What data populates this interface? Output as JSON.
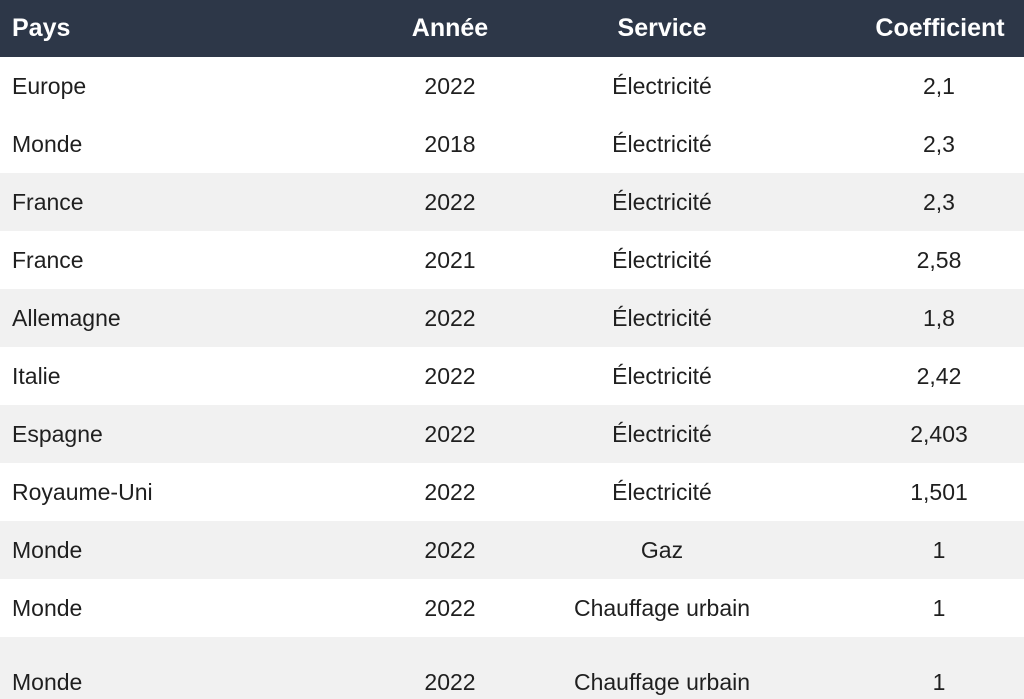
{
  "header": {
    "pays": "Pays",
    "annee": "Année",
    "service": "Service",
    "coefficient": "Coefficient"
  },
  "rows": [
    {
      "pays": "Europe",
      "annee": "2022",
      "service": "Électricité",
      "coefficient": "2,1"
    },
    {
      "pays": "Monde",
      "annee": "2018",
      "service": "Électricité",
      "coefficient": "2,3"
    },
    {
      "pays": "France",
      "annee": "2022",
      "service": "Électricité",
      "coefficient": "2,3"
    },
    {
      "pays": "France",
      "annee": "2021",
      "service": "Électricité",
      "coefficient": "2,58"
    },
    {
      "pays": "Allemagne",
      "annee": "2022",
      "service": "Électricité",
      "coefficient": "1,8"
    },
    {
      "pays": "Italie",
      "annee": "2022",
      "service": "Électricité",
      "coefficient": "2,42"
    },
    {
      "pays": "Espagne",
      "annee": "2022",
      "service": "Électricité",
      "coefficient": "2,403"
    },
    {
      "pays": "Royaume-Uni",
      "annee": "2022",
      "service": "Électricité",
      "coefficient": "1,501"
    },
    {
      "pays": "Monde",
      "annee": "2022",
      "service": "Gaz",
      "coefficient": "1"
    },
    {
      "pays": "Monde",
      "annee": "2022",
      "service": "Chauffage urbain",
      "coefficient": "1"
    },
    {
      "pays": "Monde",
      "annee": "2022",
      "service": "Chauffage urbain",
      "coefficient": "1"
    }
  ],
  "colors": {
    "header_bg": "#2d3748",
    "stripe_bg": "#f1f1f1"
  }
}
